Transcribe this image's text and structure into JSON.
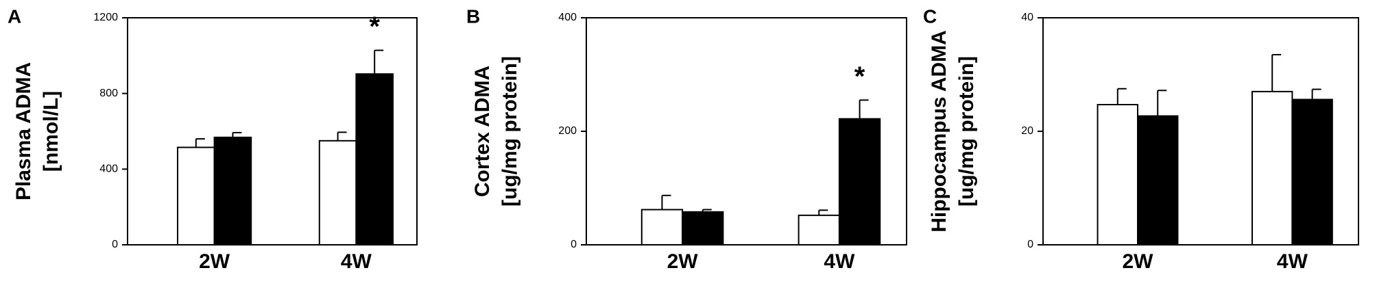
{
  "chart_data": [
    {
      "type": "bar",
      "panel": "A",
      "ylabel": [
        "Plasma ADMA",
        "[nmol/L]"
      ],
      "categories": [
        "2W",
        "4W"
      ],
      "series": [
        {
          "color": "#ffffff",
          "values": [
            515,
            550
          ],
          "errors": [
            45,
            45
          ]
        },
        {
          "color": "#000000",
          "values": [
            568,
            903
          ],
          "errors": [
            25,
            125
          ]
        }
      ],
      "annotations": [
        {
          "text": "*",
          "x": "4W"
        }
      ],
      "ylim": [
        0,
        1200
      ],
      "yticks": [
        0,
        400,
        800,
        1200
      ]
    },
    {
      "type": "bar",
      "panel": "B",
      "ylabel": [
        "Cortex ADMA",
        "[ug/mg protein]"
      ],
      "categories": [
        "2W",
        "4W"
      ],
      "series": [
        {
          "color": "#ffffff",
          "values": [
            62,
            52
          ],
          "errors": [
            25,
            9
          ]
        },
        {
          "color": "#000000",
          "values": [
            58,
            222
          ],
          "errors": [
            4,
            33
          ]
        }
      ],
      "annotations": [
        {
          "text": "*",
          "x": "4W"
        }
      ],
      "ylim": [
        0,
        400
      ],
      "yticks": [
        0,
        200,
        400
      ]
    },
    {
      "type": "bar",
      "panel": "C",
      "ylabel": [
        "Hippocampus ADMA",
        "[ug/mg protein]"
      ],
      "categories": [
        "2W",
        "4W"
      ],
      "series": [
        {
          "color": "#ffffff",
          "values": [
            24.7,
            27
          ],
          "errors": [
            2.8,
            6.5
          ]
        },
        {
          "color": "#000000",
          "values": [
            22.7,
            25.6
          ],
          "errors": [
            4.5,
            1.8
          ]
        }
      ],
      "ylim": [
        0,
        40
      ],
      "yticks": [
        0,
        20,
        40
      ]
    }
  ]
}
